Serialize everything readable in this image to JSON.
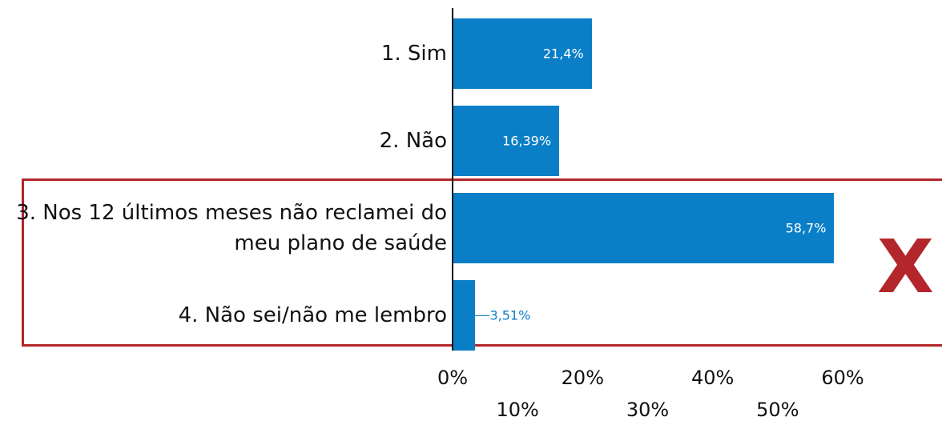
{
  "chart_data": {
    "type": "bar",
    "orientation": "horizontal",
    "categories": [
      "1. Sim",
      "2. Não",
      "3. Nos 12 últimos meses não reclamei do meu plano de saúde",
      "4. Não sei/não me lembro"
    ],
    "values": [
      21.4,
      16.39,
      58.7,
      3.51
    ],
    "value_labels": [
      "21,4%",
      "16,39%",
      "58,7%",
      "3,51%"
    ],
    "color": "#0a7fc8",
    "xlim": [
      0,
      60
    ],
    "xticks": [
      {
        "value": 0,
        "label": "0%"
      },
      {
        "value": 10,
        "label": "10%"
      },
      {
        "value": 20,
        "label": "20%"
      },
      {
        "value": 30,
        "label": "30%"
      },
      {
        "value": 40,
        "label": "40%"
      },
      {
        "value": 50,
        "label": "50%"
      },
      {
        "value": 60,
        "label": "60%"
      }
    ],
    "annotation": "X"
  }
}
